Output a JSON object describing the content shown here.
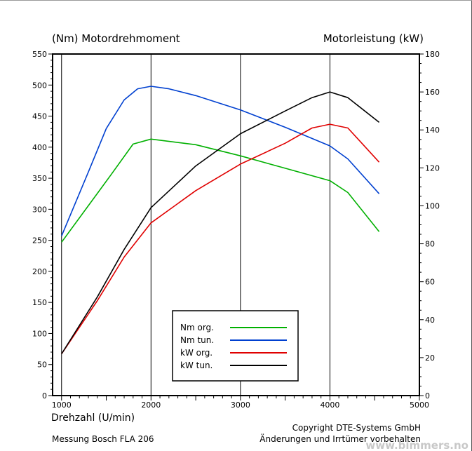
{
  "chart_data": {
    "type": "line",
    "title_left": "(Nm)  Motordrehmoment",
    "title_right": "Motorleistung  (kW)",
    "xlabel": "Drehzahl  (U/min)",
    "footer_left": "Messung Bosch FLA 206",
    "footer_right_1": "Copyright  DTE-Systems GmbH",
    "footer_right_2": "Änderungen und Irrtümer vorbehalten",
    "watermark": "www.bimmers.no",
    "xlim": [
      900,
      5000
    ],
    "ylim_left": [
      0,
      550
    ],
    "ylim_right": [
      0,
      180
    ],
    "x_ticks": [
      1000,
      2000,
      3000,
      4000,
      5000
    ],
    "y_left_ticks": [
      0,
      50,
      100,
      150,
      200,
      250,
      300,
      350,
      400,
      450,
      500,
      550
    ],
    "y_right_ticks": [
      0,
      20,
      40,
      60,
      80,
      100,
      120,
      140,
      160,
      180
    ],
    "grid": "vertical-major",
    "legend_position": "bottom-center",
    "series": [
      {
        "name": "Nm org.",
        "axis": "left",
        "color": "#00b000",
        "x": [
          1000,
          1550,
          1800,
          2000,
          2500,
          3000,
          3500,
          4000,
          4200,
          4550
        ],
        "y": [
          247,
          355,
          405,
          413,
          404,
          386,
          366,
          346,
          327,
          264
        ]
      },
      {
        "name": "Nm tun.",
        "axis": "left",
        "color": "#0040d0",
        "x": [
          1000,
          1300,
          1500,
          1700,
          1850,
          2000,
          2200,
          2500,
          3000,
          3500,
          4000,
          4200,
          4550
        ],
        "y": [
          257,
          360,
          430,
          476,
          494,
          498,
          494,
          483,
          460,
          432,
          402,
          381,
          325
        ]
      },
      {
        "name": "kW org.",
        "axis": "right",
        "color": "#e00000",
        "x": [
          1000,
          1400,
          1700,
          2000,
          2500,
          3000,
          3500,
          3800,
          4000,
          4200,
          4550
        ],
        "y": [
          22,
          50,
          73,
          91,
          108,
          122,
          133,
          141,
          143,
          141,
          123
        ]
      },
      {
        "name": "kW tun.",
        "axis": "right",
        "color": "#000000",
        "x": [
          1000,
          1400,
          1700,
          2000,
          2500,
          3000,
          3500,
          3800,
          4000,
          4200,
          4550
        ],
        "y": [
          22,
          52,
          77,
          99,
          121,
          138,
          150,
          157,
          160,
          157,
          144
        ]
      }
    ]
  }
}
